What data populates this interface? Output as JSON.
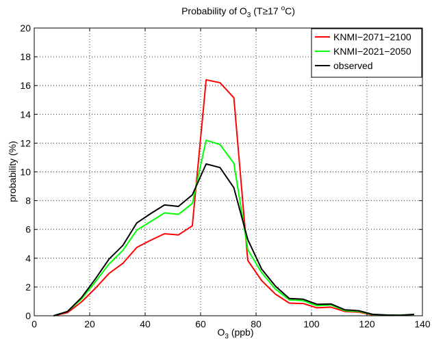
{
  "chart_data": {
    "type": "line",
    "title": {
      "prefix": "Probability of O",
      "sub": "3",
      "suffix": " (T≥17 ",
      "sup": "o",
      "end": "C)"
    },
    "xlabel": {
      "prefix": "O",
      "sub": "3",
      "suffix": " (ppb)"
    },
    "ylabel": "probability (%)",
    "xlim": [
      0,
      140
    ],
    "ylim": [
      0,
      20
    ],
    "xticks": [
      0,
      20,
      40,
      60,
      80,
      100,
      120,
      140
    ],
    "yticks": [
      0,
      2,
      4,
      6,
      8,
      10,
      12,
      14,
      16,
      18,
      20
    ],
    "grid": true,
    "legend_position": "top-right",
    "x": [
      7,
      12,
      17,
      22,
      27,
      32,
      37,
      42,
      47,
      52,
      57,
      62,
      67,
      72,
      77,
      82,
      87,
      92,
      97,
      102,
      107,
      112,
      117,
      122,
      127,
      132,
      137
    ],
    "series": [
      {
        "name": "KNMI−2071−2100",
        "color": "#ff0000",
        "values": [
          0,
          0.22,
          0.95,
          1.9,
          2.95,
          3.65,
          4.75,
          5.25,
          5.7,
          5.62,
          6.25,
          16.4,
          16.2,
          15.15,
          3.85,
          2.45,
          1.5,
          0.88,
          0.85,
          0.55,
          0.6,
          0.3,
          0.25,
          0.05,
          0.03,
          0.03,
          0.05
        ]
      },
      {
        "name": "KNMI−2021−2050",
        "color": "#00ff00",
        "values": [
          0,
          0.3,
          1.15,
          2.35,
          3.6,
          4.55,
          5.95,
          6.55,
          7.15,
          7.05,
          7.8,
          12.2,
          11.9,
          10.6,
          4.6,
          3.0,
          1.85,
          1.1,
          1.05,
          0.7,
          0.75,
          0.35,
          0.3,
          0.08,
          0.05,
          0.05,
          0.08
        ]
      },
      {
        "name": "observed",
        "color": "#000000",
        "values": [
          0,
          0.3,
          1.25,
          2.55,
          3.95,
          4.9,
          6.45,
          7.1,
          7.7,
          7.6,
          8.4,
          10.55,
          10.3,
          8.9,
          5.3,
          3.25,
          2.05,
          1.2,
          1.15,
          0.8,
          0.82,
          0.42,
          0.35,
          0.1,
          0.05,
          0.04,
          0.1
        ]
      }
    ]
  }
}
